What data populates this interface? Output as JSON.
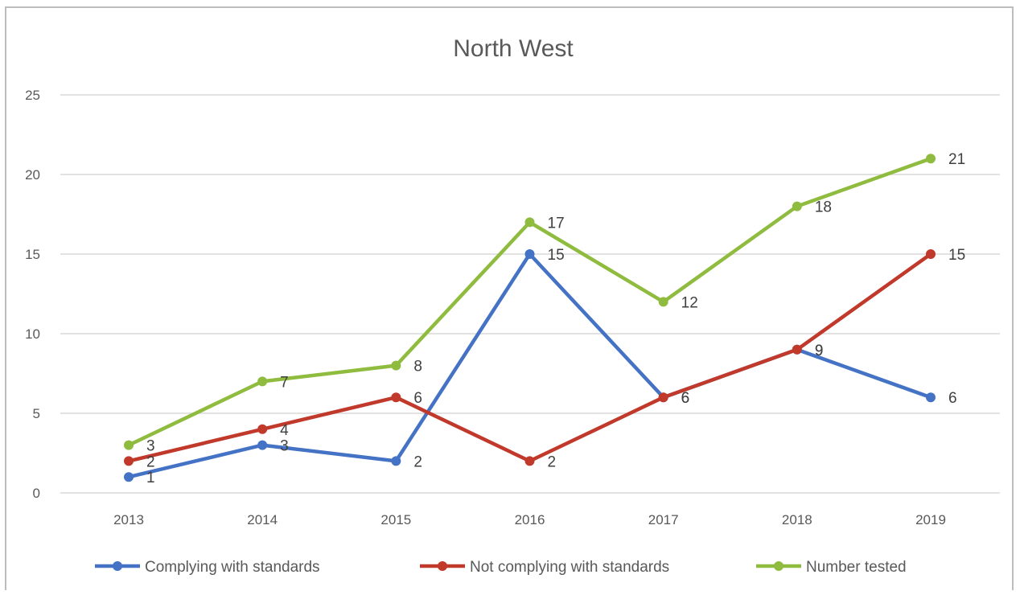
{
  "chart_data": {
    "type": "line",
    "title": "North West",
    "xlabel": "",
    "ylabel": "",
    "categories": [
      "2013",
      "2014",
      "2015",
      "2016",
      "2017",
      "2018",
      "2019"
    ],
    "ylim": [
      0,
      25
    ],
    "yticks": [
      0,
      5,
      10,
      15,
      20,
      25
    ],
    "grid": true,
    "legend_position": "bottom",
    "series": [
      {
        "name": "Complying with standards",
        "color": "#4472c4",
        "values": [
          1,
          3,
          2,
          15,
          6,
          9,
          6
        ]
      },
      {
        "name": "Not complying with standards",
        "color": "#c0392b",
        "values": [
          2,
          4,
          6,
          2,
          6,
          9,
          15
        ]
      },
      {
        "name": "Number tested",
        "color": "#8fbc3f",
        "values": [
          3,
          7,
          8,
          17,
          12,
          18,
          21
        ]
      }
    ]
  }
}
